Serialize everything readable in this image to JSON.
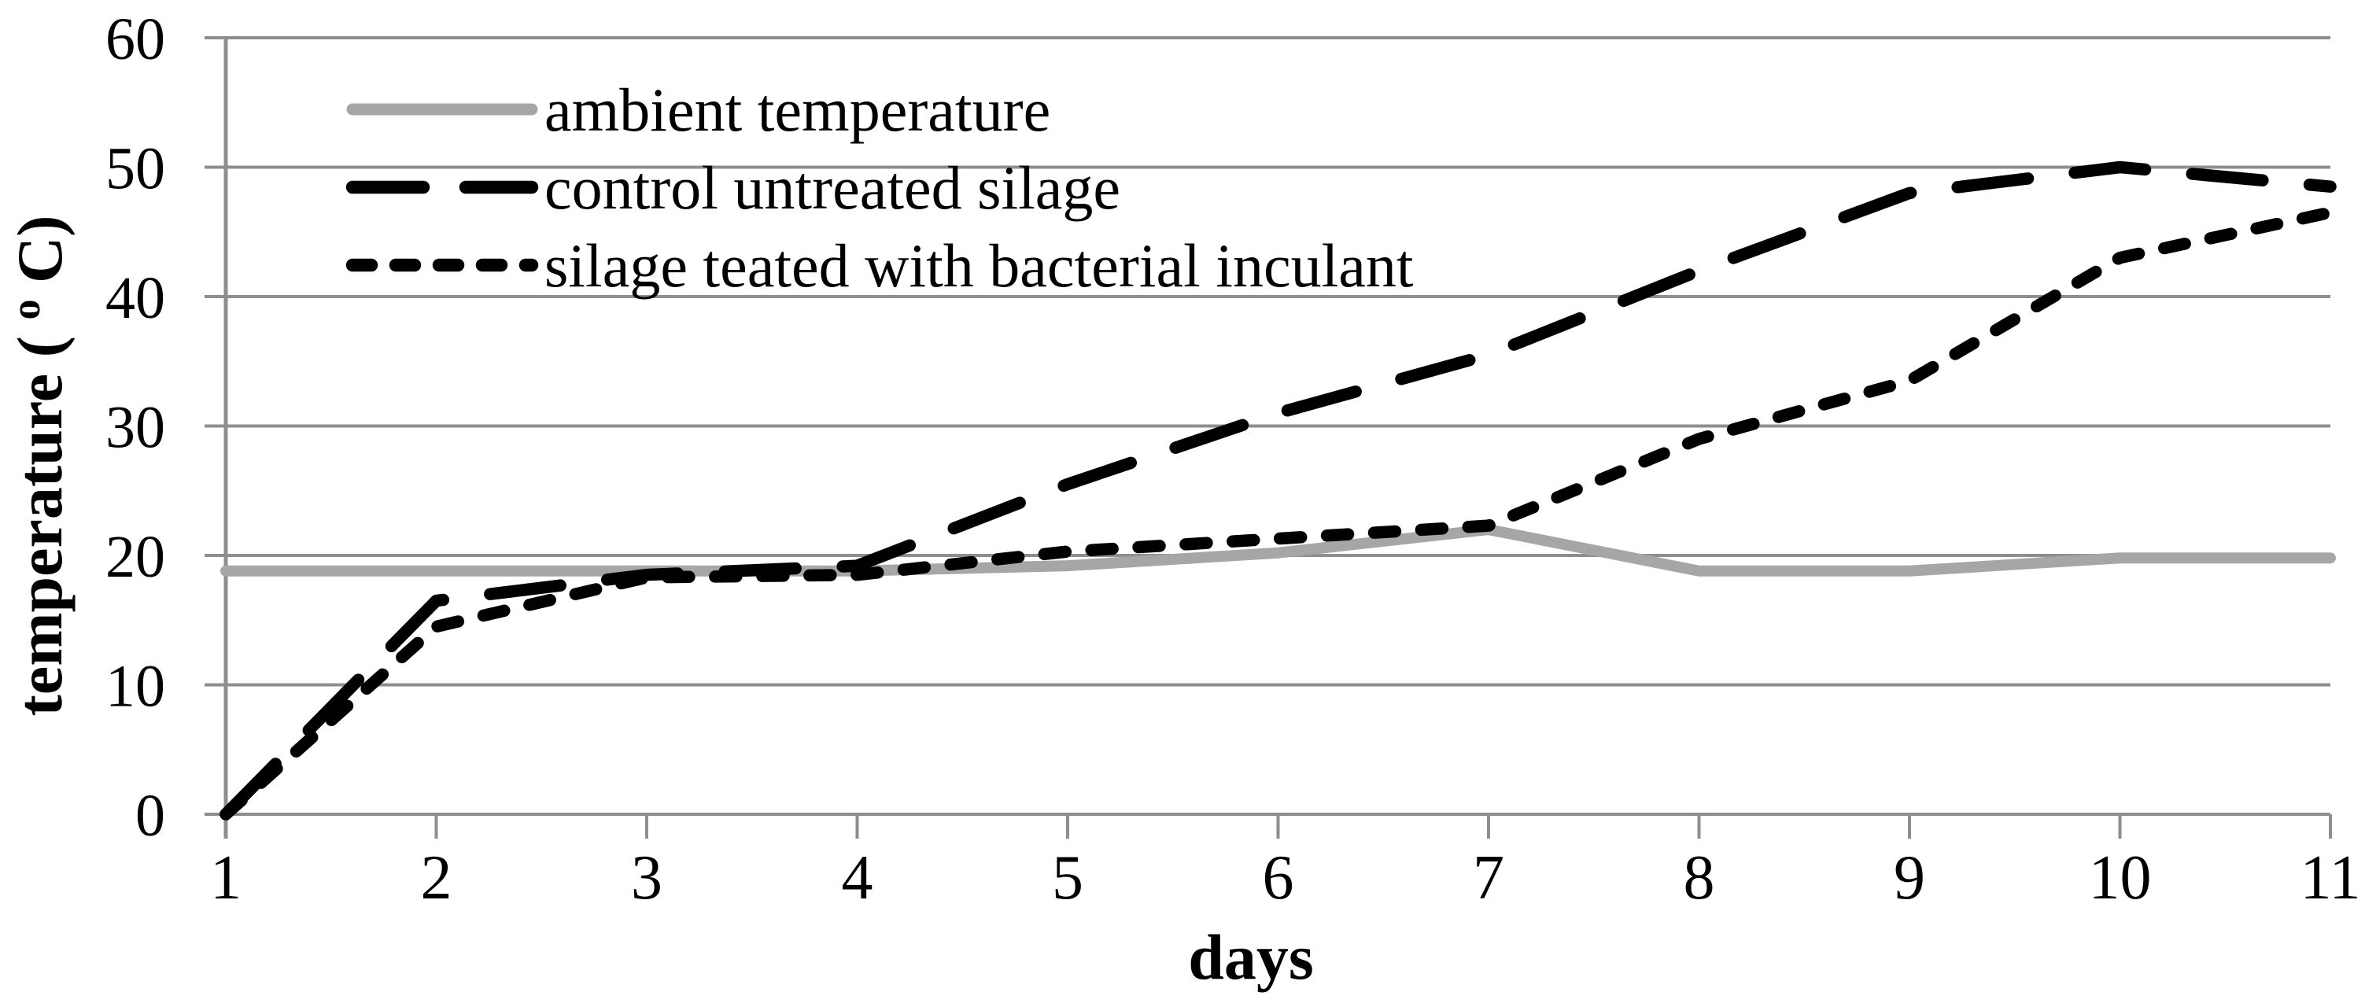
{
  "chart_data": {
    "type": "line",
    "title": "",
    "xlabel": "days",
    "ylabel": "temperature (oC)",
    "ylabel_parts": {
      "pre": "temperature (",
      "sup": "o",
      "post": "C)"
    },
    "x": [
      1,
      2,
      3,
      4,
      5,
      6,
      7,
      8,
      9,
      10,
      11
    ],
    "xlim": [
      1,
      11
    ],
    "ylim": [
      0,
      60
    ],
    "yticks": [
      0,
      10,
      20,
      30,
      40,
      50,
      60
    ],
    "xticks": [
      1,
      2,
      3,
      4,
      5,
      6,
      7,
      8,
      9,
      10,
      11
    ],
    "grid": "horizontal-only",
    "legend_position": "top-left-inside",
    "background_color": "#ffffff",
    "axis_color": "#8e8e8e",
    "grid_color": "#8e8e8e",
    "series": [
      {
        "name": "ambient temperature",
        "color": "#a6a6a6",
        "dash": "solid",
        "values": [
          18.8,
          18.8,
          18.8,
          18.8,
          19.2,
          20.2,
          22,
          18.8,
          18.8,
          19.8,
          19.8
        ]
      },
      {
        "name": "control untreated silage",
        "color": "#000000",
        "dash": "long-dash",
        "values": [
          0,
          16.5,
          18.5,
          19.2,
          25.5,
          31,
          35.5,
          42,
          48,
          50,
          48.5
        ]
      },
      {
        "name": "silage teated with bacterial inculant",
        "color": "#000000",
        "dash": "short-dash",
        "values": [
          0,
          14.5,
          18.3,
          18.5,
          20.3,
          21.3,
          22.3,
          29,
          33.5,
          43,
          46.5
        ]
      }
    ]
  }
}
